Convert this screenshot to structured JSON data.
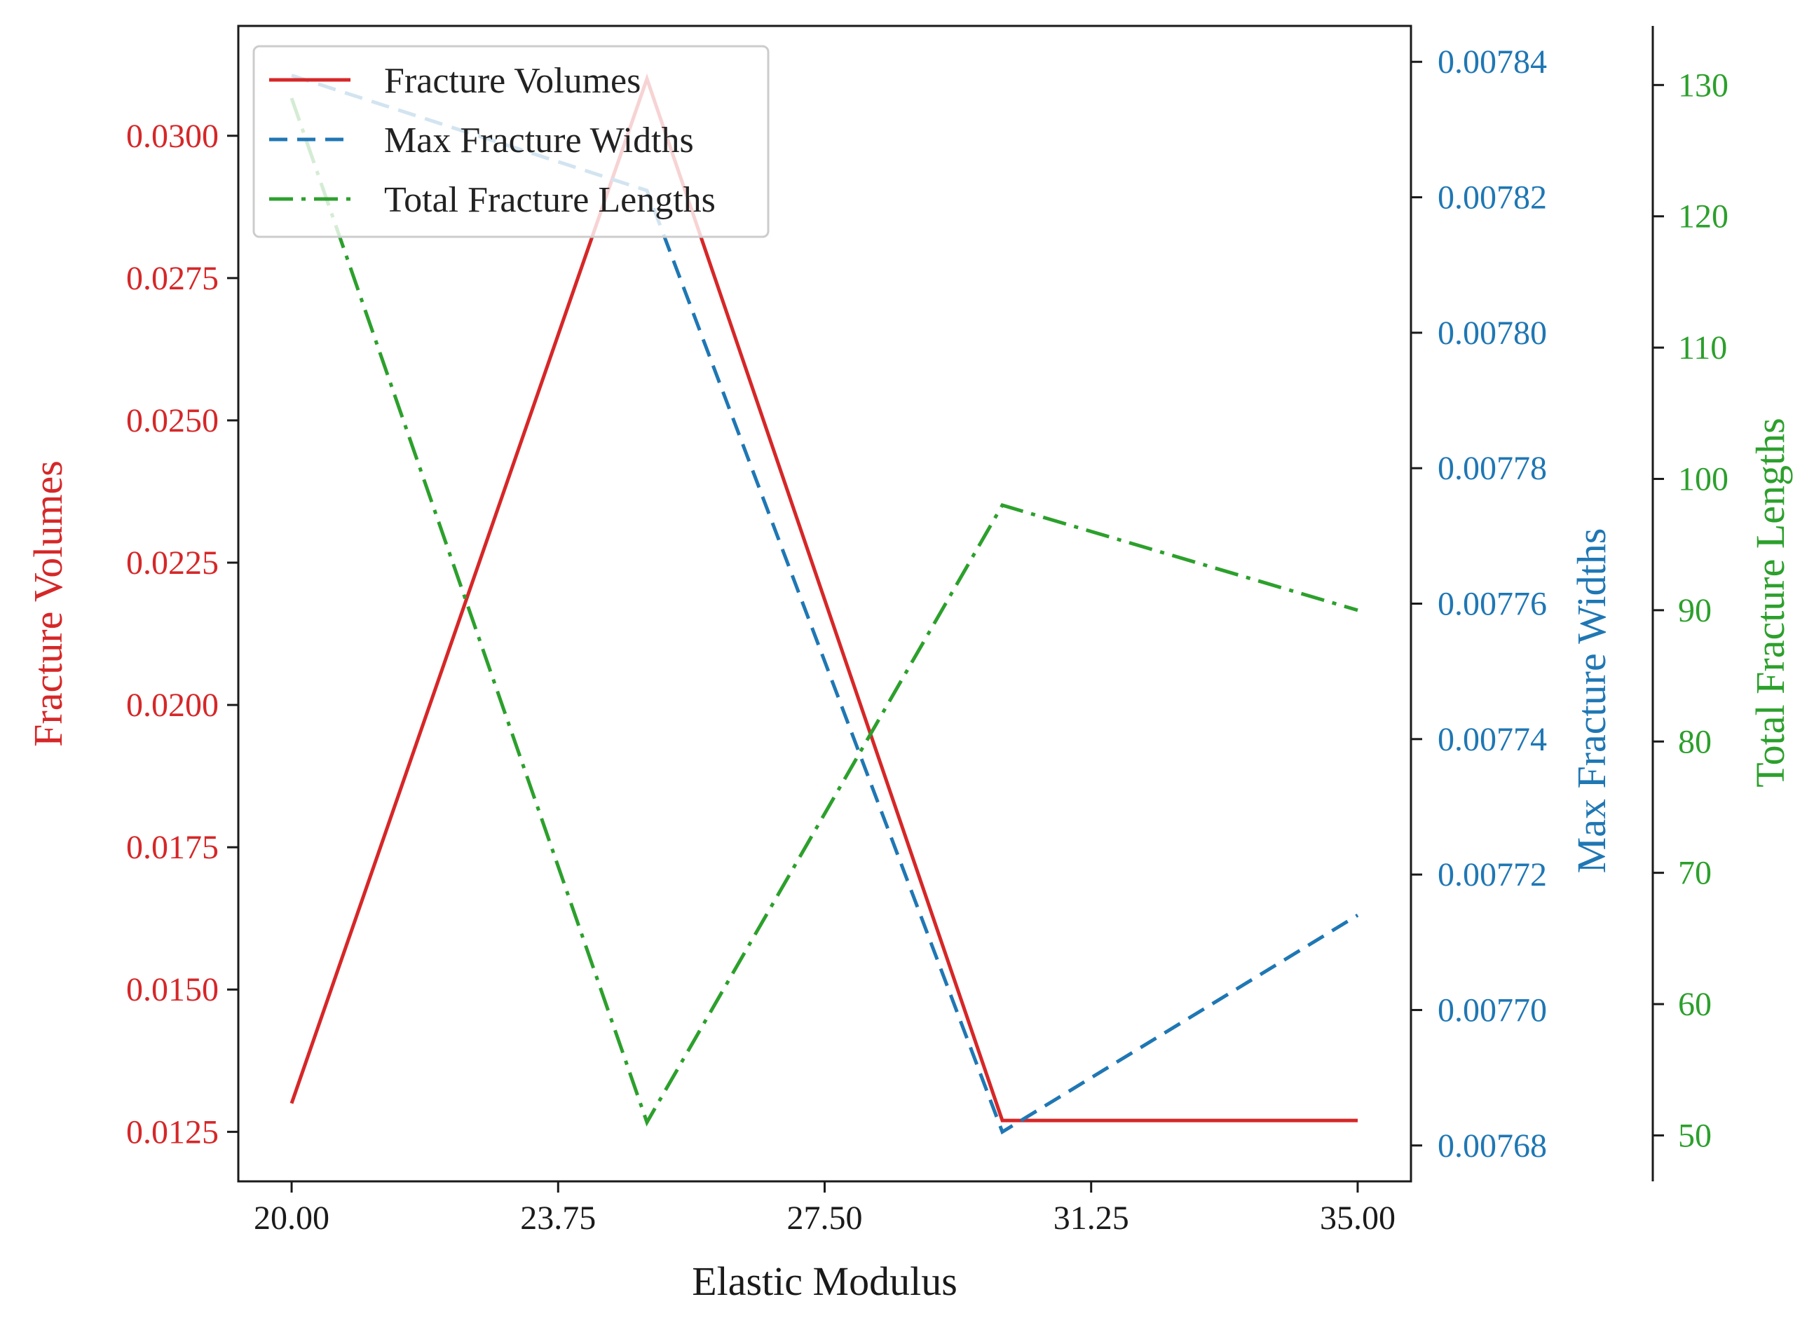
{
  "chart_data": {
    "type": "line",
    "xlabel": "Elastic Modulus",
    "x": [
      20.0,
      25.0,
      30.0,
      35.0
    ],
    "x_ticks": [
      "20.00",
      "23.75",
      "27.50",
      "31.25",
      "35.00"
    ],
    "x_tick_values": [
      20.0,
      23.75,
      27.5,
      31.25,
      35.0
    ],
    "xlim": [
      19.25,
      35.75
    ],
    "series": [
      {
        "name": "Fracture Volumes",
        "axis": "left",
        "color": "#d62728",
        "style": "solid",
        "values": [
          0.013,
          0.031,
          0.0127,
          0.0127
        ]
      },
      {
        "name": "Max Fracture Widths",
        "axis": "right1",
        "color": "#1f77b4",
        "style": "dashed",
        "values": [
          0.007838,
          0.007821,
          0.007682,
          0.007714
        ]
      },
      {
        "name": "Total Fracture Lengths",
        "axis": "right2",
        "color": "#2ca02c",
        "style": "dashdot",
        "values": [
          129.0,
          51.0,
          98.0,
          90.0
        ]
      }
    ],
    "axes": {
      "left": {
        "label": "Fracture Volumes",
        "color": "#d62728",
        "ticks": [
          "0.0125",
          "0.0150",
          "0.0175",
          "0.0200",
          "0.0225",
          "0.0250",
          "0.0275",
          "0.0300"
        ],
        "tick_values": [
          0.0125,
          0.015,
          0.0175,
          0.02,
          0.0225,
          0.025,
          0.0275,
          0.03
        ],
        "ylim": [
          0.01163,
          0.03193
        ]
      },
      "right1": {
        "label": "Max Fracture Widths",
        "color": "#1f77b4",
        "ticks": [
          "0.00768",
          "0.00770",
          "0.00772",
          "0.00774",
          "0.00776",
          "0.00778",
          "0.00780",
          "0.00782",
          "0.00784"
        ],
        "tick_values": [
          0.00768,
          0.0077,
          0.00772,
          0.00774,
          0.00776,
          0.00778,
          0.0078,
          0.00782,
          0.00784
        ],
        "ylim": [
          0.0076747,
          0.0078453
        ]
      },
      "right2": {
        "label": "Total Fracture Lengths",
        "color": "#2ca02c",
        "ticks": [
          "50",
          "60",
          "70",
          "80",
          "90",
          "100",
          "110",
          "120",
          "130"
        ],
        "tick_values": [
          50,
          60,
          70,
          80,
          90,
          100,
          110,
          120,
          130
        ],
        "ylim": [
          46.5,
          134.5
        ]
      }
    },
    "legend": {
      "placement": "upper-left",
      "entries": [
        "Fracture Volumes",
        "Max Fracture Widths",
        "Total Fracture Lengths"
      ]
    },
    "grid": false
  }
}
